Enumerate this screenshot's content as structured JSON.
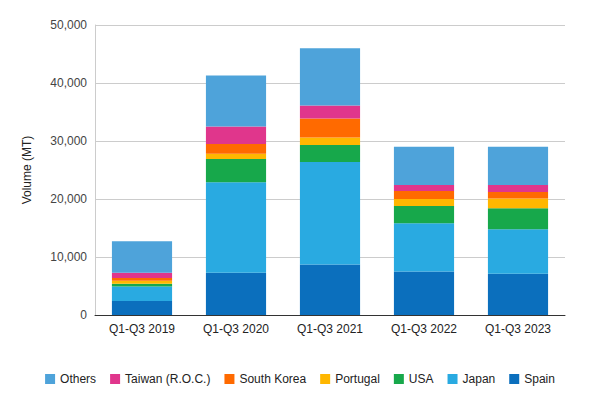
{
  "chart_data": {
    "type": "bar",
    "stacked": true,
    "grid": true,
    "legend": "bottom",
    "y_label": "Volume (MT)",
    "categories": [
      "Q1-Q3 2019",
      "Q1-Q3 2020",
      "Q1-Q3 2021",
      "Q1-Q3 2022",
      "Q1-Q3 2023"
    ],
    "series": [
      {
        "name": "Spain",
        "color": "#0b6fbd",
        "values": [
          2400,
          7300,
          8700,
          7500,
          7100
        ]
      },
      {
        "name": "Japan",
        "color": "#29aae1",
        "values": [
          2500,
          15600,
          17700,
          8300,
          7700
        ]
      },
      {
        "name": "USA",
        "color": "#17a84b",
        "values": [
          500,
          4000,
          2900,
          3000,
          3600
        ]
      },
      {
        "name": "Portugal",
        "color": "#ffb700",
        "values": [
          500,
          900,
          1300,
          1200,
          1700
        ]
      },
      {
        "name": "South Korea",
        "color": "#ff6a00",
        "values": [
          500,
          1700,
          3300,
          1400,
          1100
        ]
      },
      {
        "name": "Taiwan (R.O.C.)",
        "color": "#e0368c",
        "values": [
          900,
          3000,
          2200,
          1000,
          1200
        ]
      },
      {
        "name": "Others",
        "color": "#4ea3da",
        "values": [
          5400,
          8800,
          9900,
          6600,
          6600
        ]
      }
    ],
    "ylim": [
      0,
      50000
    ],
    "yticks": [
      0,
      {
        "value": 10000,
        "label": "10,000"
      },
      {
        "value": 20000,
        "label": "20,000"
      },
      {
        "value": 30000,
        "label": "30,000"
      },
      {
        "value": 40000,
        "label": "40,000"
      },
      {
        "value": 50000,
        "label": "50,000"
      }
    ]
  }
}
